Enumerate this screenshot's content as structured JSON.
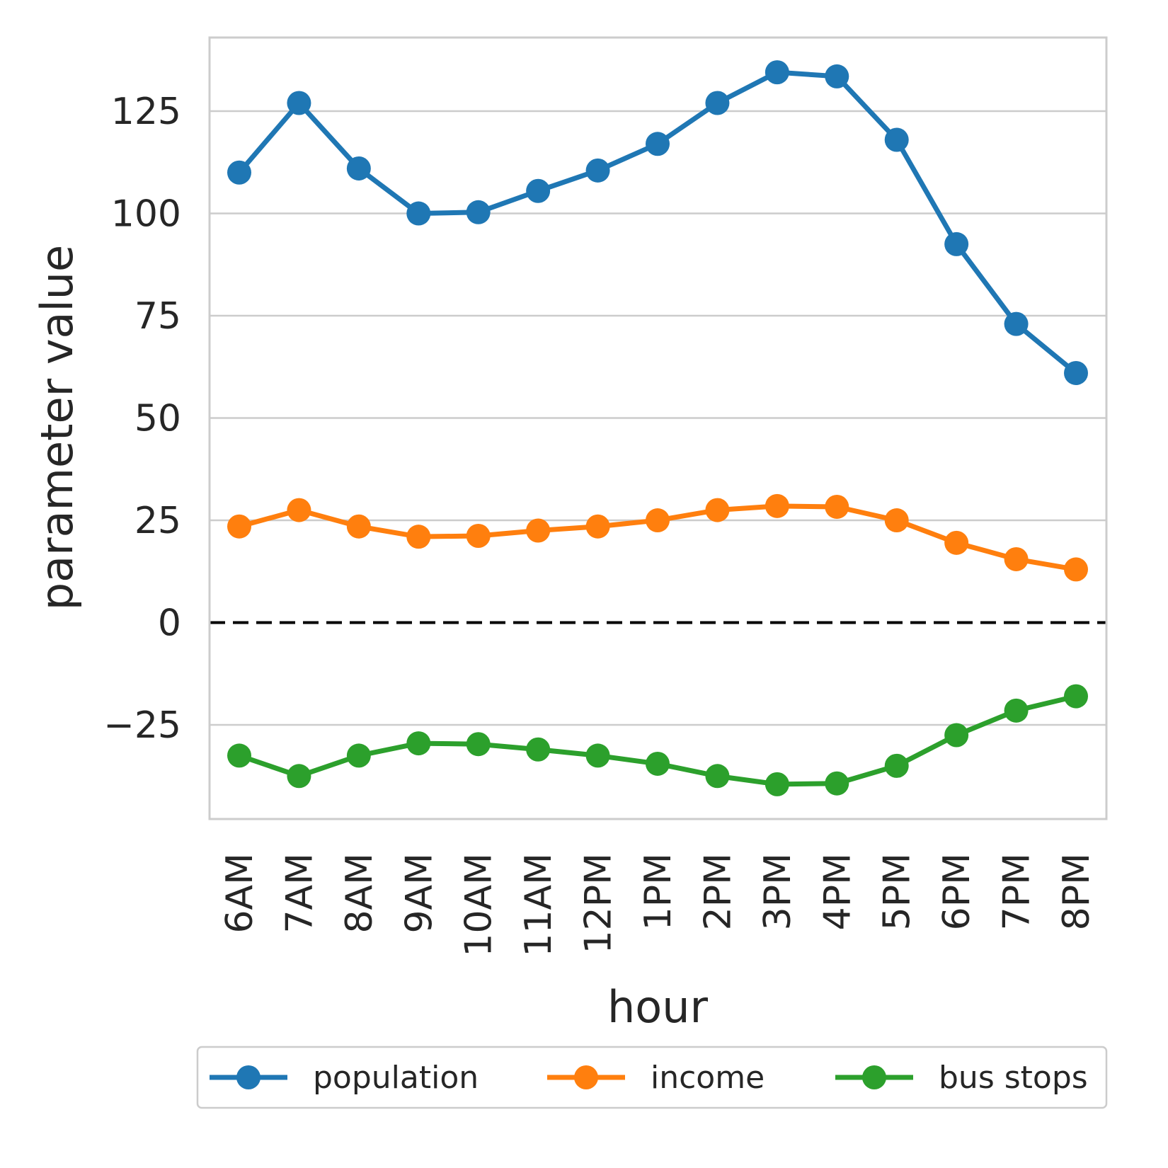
{
  "chart_data": {
    "type": "line",
    "xlabel": "hour",
    "ylabel": "parameter value",
    "categories": [
      "6AM",
      "7AM",
      "8AM",
      "9AM",
      "10AM",
      "11AM",
      "12PM",
      "1PM",
      "2PM",
      "3PM",
      "4PM",
      "5PM",
      "6PM",
      "7PM",
      "8PM"
    ],
    "ylim": [
      -48,
      143
    ],
    "yticks": [
      -25,
      0,
      25,
      50,
      75,
      100,
      125
    ],
    "ytick_labels": [
      "−25",
      "0",
      "25",
      "50",
      "75",
      "100",
      "125"
    ],
    "grid": "horizontal",
    "reference_line": {
      "y": 0,
      "style": "dashed",
      "color": "#000000"
    },
    "legend_position": "bottom",
    "series": [
      {
        "name": "population",
        "color": "#1f77b4",
        "values": [
          110,
          127,
          111,
          100,
          100.3,
          105.5,
          110.5,
          117,
          127,
          134.5,
          133.5,
          118,
          92.5,
          73,
          61
        ]
      },
      {
        "name": "income",
        "color": "#ff7f0e",
        "values": [
          23.5,
          27.5,
          23.5,
          21,
          21.2,
          22.5,
          23.5,
          25,
          27.5,
          28.5,
          28.3,
          25,
          19.5,
          15.5,
          13
        ]
      },
      {
        "name": "bus stops",
        "color": "#2ca02c",
        "values": [
          -32.5,
          -37.5,
          -32.5,
          -29.5,
          -29.7,
          -31,
          -32.5,
          -34.5,
          -37.5,
          -39.5,
          -39.3,
          -35,
          -27.5,
          -21.5,
          -18
        ]
      }
    ]
  }
}
